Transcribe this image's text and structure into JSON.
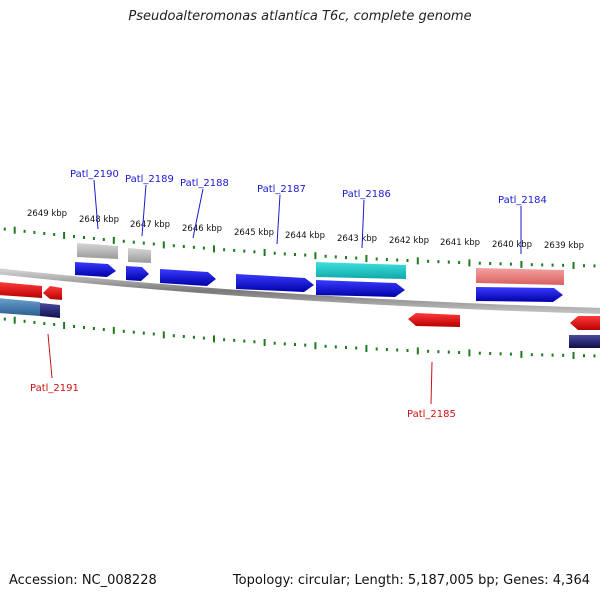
{
  "title": "Pseudoalteromonas atlantica T6c, complete genome",
  "footer": {
    "accession": "Accession: NC_008228",
    "summary": "Topology: circular; Length: 5,187,005 bp; Genes: 4,364"
  },
  "scale_labels": [
    "2649 kbp",
    "2648 kbp",
    "2647 kbp",
    "2646 kbp",
    "2645 kbp",
    "2644 kbp",
    "2643 kbp",
    "2642 kbp",
    "2641 kbp",
    "2640 kbp",
    "2639 kbp"
  ],
  "gene_labels": [
    {
      "text": "Patl_2190",
      "strand": "forward"
    },
    {
      "text": "Patl_2189",
      "strand": "forward"
    },
    {
      "text": "Patl_2188",
      "strand": "forward"
    },
    {
      "text": "Patl_2187",
      "strand": "forward"
    },
    {
      "text": "Patl_2186",
      "strand": "forward"
    },
    {
      "text": "Patl_2184",
      "strand": "forward"
    },
    {
      "text": "Patl_2191",
      "strand": "reverse"
    },
    {
      "text": "Patl_2185",
      "strand": "reverse"
    }
  ],
  "colors": {
    "forward_label": "#1a1ad0",
    "reverse_label": "#cc1111",
    "forward_gene": "#0a0ae0",
    "reverse_gene": "#ee0000",
    "tick": "#1e7a1e",
    "backbone": "#8a8a8a",
    "gray_feature": "#b8b8b8",
    "cyan_feature": "#1cc8c8",
    "pink_feature": "#ee8080",
    "steel_feature": "#4a7fb0",
    "navy_feature": "#22227a"
  }
}
